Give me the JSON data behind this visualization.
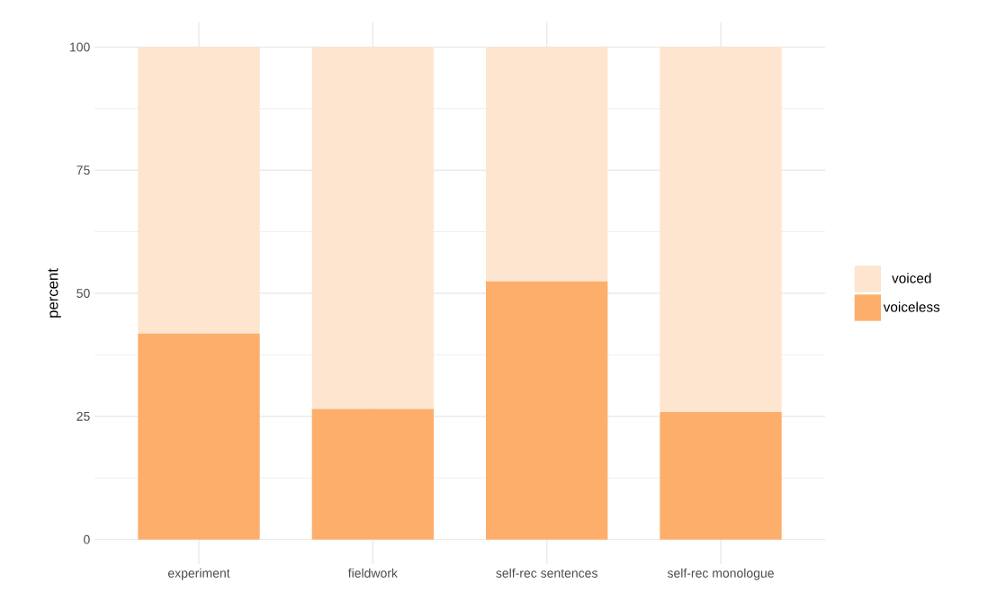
{
  "chart_data": {
    "type": "bar",
    "stacked": true,
    "ylabel": "percent",
    "categories": [
      "experiment",
      "fieldwork",
      "self-rec sentences",
      "self-rec monologue"
    ],
    "series": [
      {
        "name": "voiceless",
        "color": "#fdae6b",
        "values": [
          41.8,
          26.5,
          52.4,
          25.9
        ]
      },
      {
        "name": "voiced",
        "color": "#fde5cf",
        "values": [
          58.2,
          73.5,
          47.6,
          74.1
        ]
      }
    ],
    "ylim": [
      0,
      100
    ],
    "yticks": [
      0,
      25,
      50,
      75,
      100
    ],
    "grid": true,
    "legend": "right"
  }
}
